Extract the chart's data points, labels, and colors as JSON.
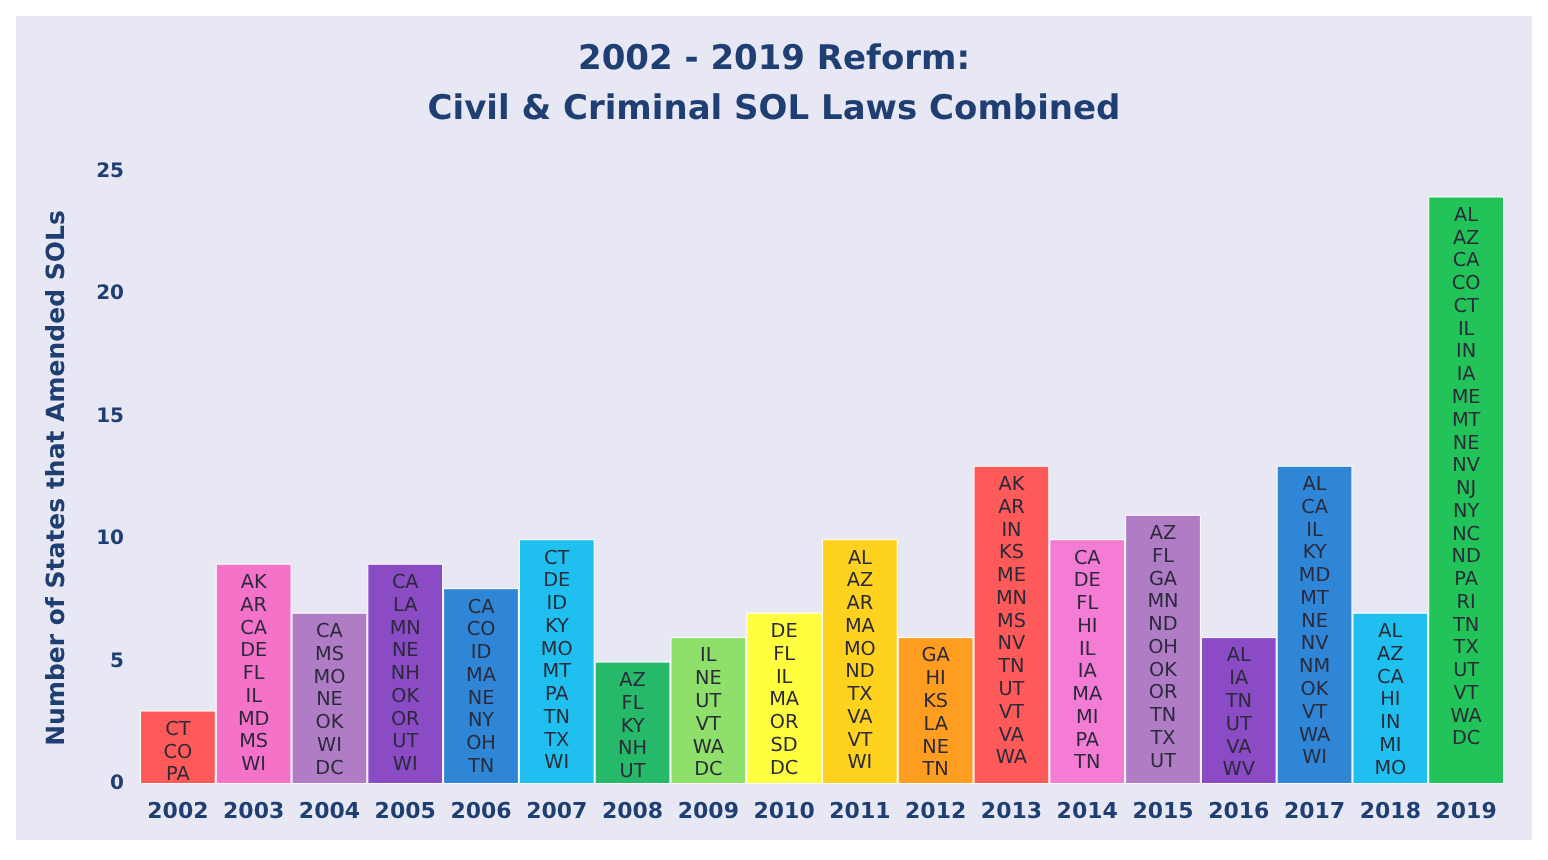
{
  "chart_data": {
    "type": "bar",
    "title": "2002 - 2019 Reform:",
    "subtitle": "Civil & Criminal SOL Laws Combined",
    "ylabel": "Number of States that Amended SOLs",
    "categories": [
      "2002",
      "2003",
      "2004",
      "2005",
      "2006",
      "2007",
      "2008",
      "2009",
      "2010",
      "2011",
      "2012",
      "2013",
      "2014",
      "2015",
      "2016",
      "2017",
      "2018",
      "2019"
    ],
    "values": [
      3,
      9,
      7,
      9,
      8,
      10,
      5,
      6,
      7,
      10,
      6,
      13,
      10,
      11,
      6,
      13,
      7,
      24
    ],
    "colors": [
      "#ff5a5a",
      "#f472c8",
      "#b07cc6",
      "#8a4bc4",
      "#2f86d6",
      "#1fc0ef",
      "#27b96a",
      "#8fe06a",
      "#ffff40",
      "#ffd21f",
      "#ff9d21",
      "#ff5a5a",
      "#f47cd5",
      "#b07cc6",
      "#8a4bc4",
      "#2f86d6",
      "#1fc0ef",
      "#22c45a"
    ],
    "value_labels": [
      "CT\nCO\nPA",
      "AK\nAR\nCA\nDE\nFL\nIL\nMD\nMS\nWI",
      "CA\nMS\nMO\nNE\nOK\nWI\nDC",
      "CA\nLA\nMN\nNE\nNH\nOK\nOR\nUT\nWI",
      "CA\nCO\nID\nMA\nNE\nNY\nOH\nTN",
      "CT\nDE\nID\nKY\nMO\nMT\nPA\nTN\nTX\nWI",
      "AZ\nFL\nKY\nNH\nUT",
      "IL\nNE\nUT\nVT\nWA\nDC",
      "DE\nFL\nIL\nMA\nOR\nSD\nDC",
      "AL\nAZ\nAR\nMA\nMO\nND\nTX\nVA\nVT\nWI",
      "GA\nHI\nKS\nLA\nNE\nTN",
      "AK\nAR\nIN\nKS\nME\nMN\nMS\nNV\nTN\nUT\nVT\nVA\nWA",
      "CA\nDE\nFL\nHI\nIL\nIA\nMA\nMI\nPA\nTN",
      "AZ\nFL\nGA\nMN\nND\nOH\nOK\nOR\nTN\nTX\nUT",
      "AL\nIA\nTN\nUT\nVA\nWV",
      "AL\nCA\nIL\nKY\nMD\nMT\nNE\nNV\nNM\nOK\nVT\nWA\nWI",
      "AL\nAZ\nCA\nHI\nIN\nMI\nMO",
      "AL\nAZ\nCA\nCO\nCT\nIL\nIN\nIA\nME\nMT\nNE\nNV\nNJ\nNY\nNC\nND\nPA\nRI\nTN\nTX\nUT\nVT\nWA\nDC"
    ],
    "ylim": [
      0,
      25
    ],
    "yticks": [
      0,
      5,
      10,
      15,
      20,
      25
    ],
    "grid": false
  }
}
